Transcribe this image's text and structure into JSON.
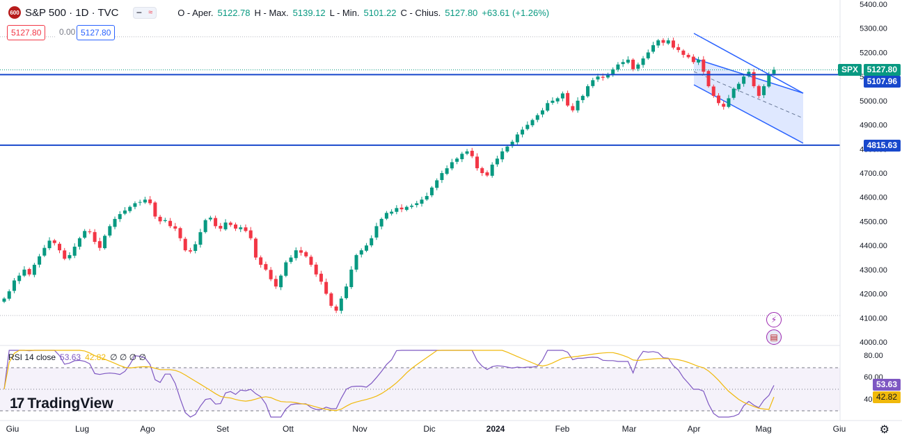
{
  "header": {
    "badge": "600",
    "title": "S&P 500 · 1D · TVC",
    "mini_btn_1": "━",
    "mini_btn_2": "≈",
    "open_label": "O - Aper.",
    "open_value": "5122.78",
    "high_label": "H - Max.",
    "high_value": "5139.12",
    "low_label": "L - Min.",
    "low_value": "5101.22",
    "close_label": "C - Chius.",
    "close_value": "5127.80",
    "change": "+63.61 (+1.26%)"
  },
  "price_boxes": {
    "bid": "5127.80",
    "spread": "0.00",
    "ask": "5127.80"
  },
  "rsi_legend": {
    "name": "RSI 14 close",
    "rsi": "53.63",
    "ma": "42.82",
    "extras": "∅ ∅ ∅ ∅"
  },
  "branding": {
    "logo_mark": "17",
    "text": "TradingView"
  },
  "price_axis": {
    "ticks": [
      "5400.00",
      "5300.00",
      "5200.00",
      "5100.00",
      "5000.00",
      "4900.00",
      "4800.00",
      "4700.00",
      "4600.00",
      "4500.00",
      "4400.00",
      "4300.00",
      "4200.00",
      "4100.00",
      "4000.00"
    ],
    "labels": {
      "symbol": "SPX",
      "last_price": "5127.80",
      "line_upper": "5107.96",
      "line_lower": "4815.63"
    }
  },
  "rsi_axis": {
    "ticks": [
      "80.00",
      "60.00",
      "40.00"
    ],
    "rsi_label": "53.63",
    "ma_label": "42.82"
  },
  "time_axis": {
    "labels": [
      "Giu",
      "Lug",
      "Ago",
      "Set",
      "Ott",
      "Nov",
      "Dic",
      "2024",
      "Feb",
      "Mar",
      "Apr",
      "Mag",
      "Giu"
    ]
  },
  "icons": {
    "flash": "flash-icon",
    "flag": "us-flag-icon",
    "settings": "gear-icon"
  },
  "colors": {
    "up": "#089981",
    "down": "#f23645",
    "line": "#1848cc",
    "channel": "#2962ff",
    "rsi": "#7e57c2",
    "rsi_ma": "#f0b90b"
  },
  "chart_data": {
    "type": "candlestick",
    "price_range": [
      4000,
      5400
    ],
    "horizontal_lines": [
      5107.96,
      4815.63
    ],
    "last_price": 5127.8,
    "closes": [
      4180,
      4210,
      4255,
      4275,
      4300,
      4280,
      4320,
      4355,
      4390,
      4420,
      4410,
      4380,
      4345,
      4360,
      4395,
      4430,
      4460,
      4455,
      4415,
      4390,
      4440,
      4480,
      4510,
      4530,
      4545,
      4560,
      4575,
      4580,
      4590,
      4575,
      4520,
      4500,
      4505,
      4480,
      4470,
      4430,
      4380,
      4375,
      4405,
      4455,
      4505,
      4515,
      4480,
      4470,
      4495,
      4485,
      4470,
      4475,
      4460,
      4430,
      4350,
      4320,
      4300,
      4260,
      4230,
      4275,
      4330,
      4350,
      4380,
      4370,
      4355,
      4320,
      4280,
      4250,
      4200,
      4150,
      4130,
      4180,
      4230,
      4300,
      4360,
      4380,
      4400,
      4430,
      4480,
      4510,
      4535,
      4540,
      4555,
      4550,
      4560,
      4565,
      4575,
      4590,
      4605,
      4640,
      4670,
      4700,
      4720,
      4745,
      4760,
      4780,
      4790,
      4770,
      4720,
      4700,
      4690,
      4735,
      4760,
      4790,
      4810,
      4830,
      4860,
      4880,
      4900,
      4920,
      4940,
      4960,
      4990,
      5000,
      5010,
      5030,
      4980,
      4960,
      5000,
      5020,
      5060,
      5085,
      5100,
      5095,
      5110,
      5130,
      5150,
      5160,
      5170,
      5130,
      5150,
      5175,
      5200,
      5230,
      5250,
      5240,
      5250,
      5220,
      5210,
      5190,
      5180,
      5160,
      5170,
      5120,
      5060,
      5020,
      4990,
      4975,
      5010,
      5050,
      5070,
      5100,
      5120,
      5060,
      5020,
      5060,
      5110,
      5128
    ],
    "rsi": {
      "range": [
        0,
        100
      ],
      "bands": [
        70,
        50,
        30
      ],
      "last_rsi": 53.63,
      "last_ma": 42.82
    }
  }
}
